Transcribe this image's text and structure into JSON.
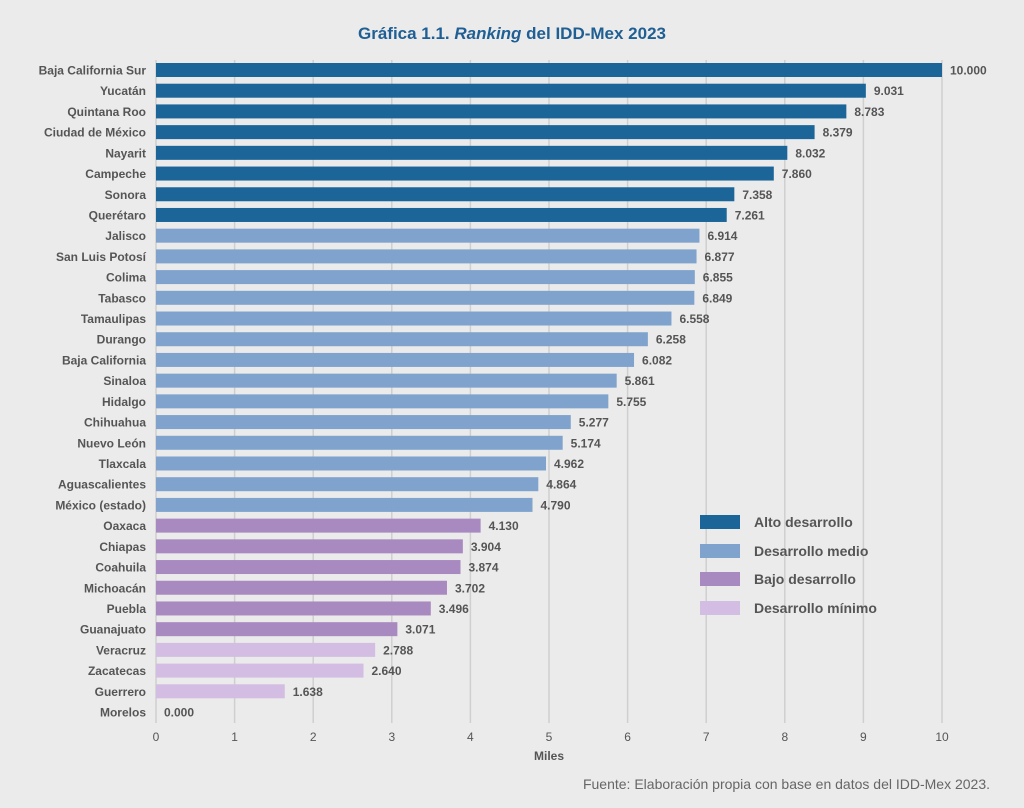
{
  "chart_data": {
    "type": "bar",
    "orientation": "horizontal",
    "title_prefix": "Gráfica 1.1. ",
    "title_italic": "Ranking",
    "title_suffix": " del IDD-Mex 2023",
    "xlabel": "Miles",
    "xlim": [
      0,
      10
    ],
    "xticks": [
      "0",
      "1",
      "2",
      "3",
      "4",
      "5",
      "6",
      "7",
      "8",
      "9",
      "10"
    ],
    "grid": "vertical",
    "legend_position": "center-right",
    "categories": [
      "Baja California Sur",
      "Yucatán",
      "Quintana Roo",
      "Ciudad de México",
      "Nayarit",
      "Campeche",
      "Sonora",
      "Querétaro",
      "Jalisco",
      "San Luis Potosí",
      "Colima",
      "Tabasco",
      "Tamaulipas",
      "Durango",
      "Baja California",
      "Sinaloa",
      "Hidalgo",
      "Chihuahua",
      "Nuevo León",
      "Tlaxcala",
      "Aguascalientes",
      "México (estado)",
      "Oaxaca",
      "Chiapas",
      "Coahuila",
      "Michoacán",
      "Puebla",
      "Guanajuato",
      "Veracruz",
      "Zacatecas",
      "Guerrero",
      "Morelos"
    ],
    "values": [
      10.0,
      9.031,
      8.783,
      8.379,
      8.032,
      7.86,
      7.358,
      7.261,
      6.914,
      6.877,
      6.855,
      6.849,
      6.558,
      6.258,
      6.082,
      5.861,
      5.755,
      5.277,
      5.174,
      4.962,
      4.864,
      4.79,
      4.13,
      3.904,
      3.874,
      3.702,
      3.496,
      3.071,
      2.788,
      2.64,
      1.638,
      0.0
    ],
    "value_labels": [
      "10.000",
      "9.031",
      "8.783",
      "8.379",
      "8.032",
      "7.860",
      "7.358",
      "7.261",
      "6.914",
      "6.877",
      "6.855",
      "6.849",
      "6.558",
      "6.258",
      "6.082",
      "5.861",
      "5.755",
      "5.277",
      "5.174",
      "4.962",
      "4.864",
      "4.790",
      "4.130",
      "3.904",
      "3.874",
      "3.702",
      "3.496",
      "3.071",
      "2.788",
      "2.640",
      "1.638",
      "0.000"
    ],
    "groups": [
      0,
      0,
      0,
      0,
      0,
      0,
      0,
      0,
      1,
      1,
      1,
      1,
      1,
      1,
      1,
      1,
      1,
      1,
      1,
      1,
      1,
      1,
      2,
      2,
      2,
      2,
      2,
      2,
      3,
      3,
      3,
      3
    ],
    "legend": [
      {
        "label": "Alto desarrollo",
        "color": "#1b6598"
      },
      {
        "label": "Desarrollo medio",
        "color": "#7fa3cd"
      },
      {
        "label": "Bajo desarrollo",
        "color": "#a98ac0"
      },
      {
        "label": "Desarrollo mínimo",
        "color": "#d3bde2"
      }
    ]
  },
  "source": "Fuente: Elaboración propia con base en datos del IDD-Mex 2023."
}
